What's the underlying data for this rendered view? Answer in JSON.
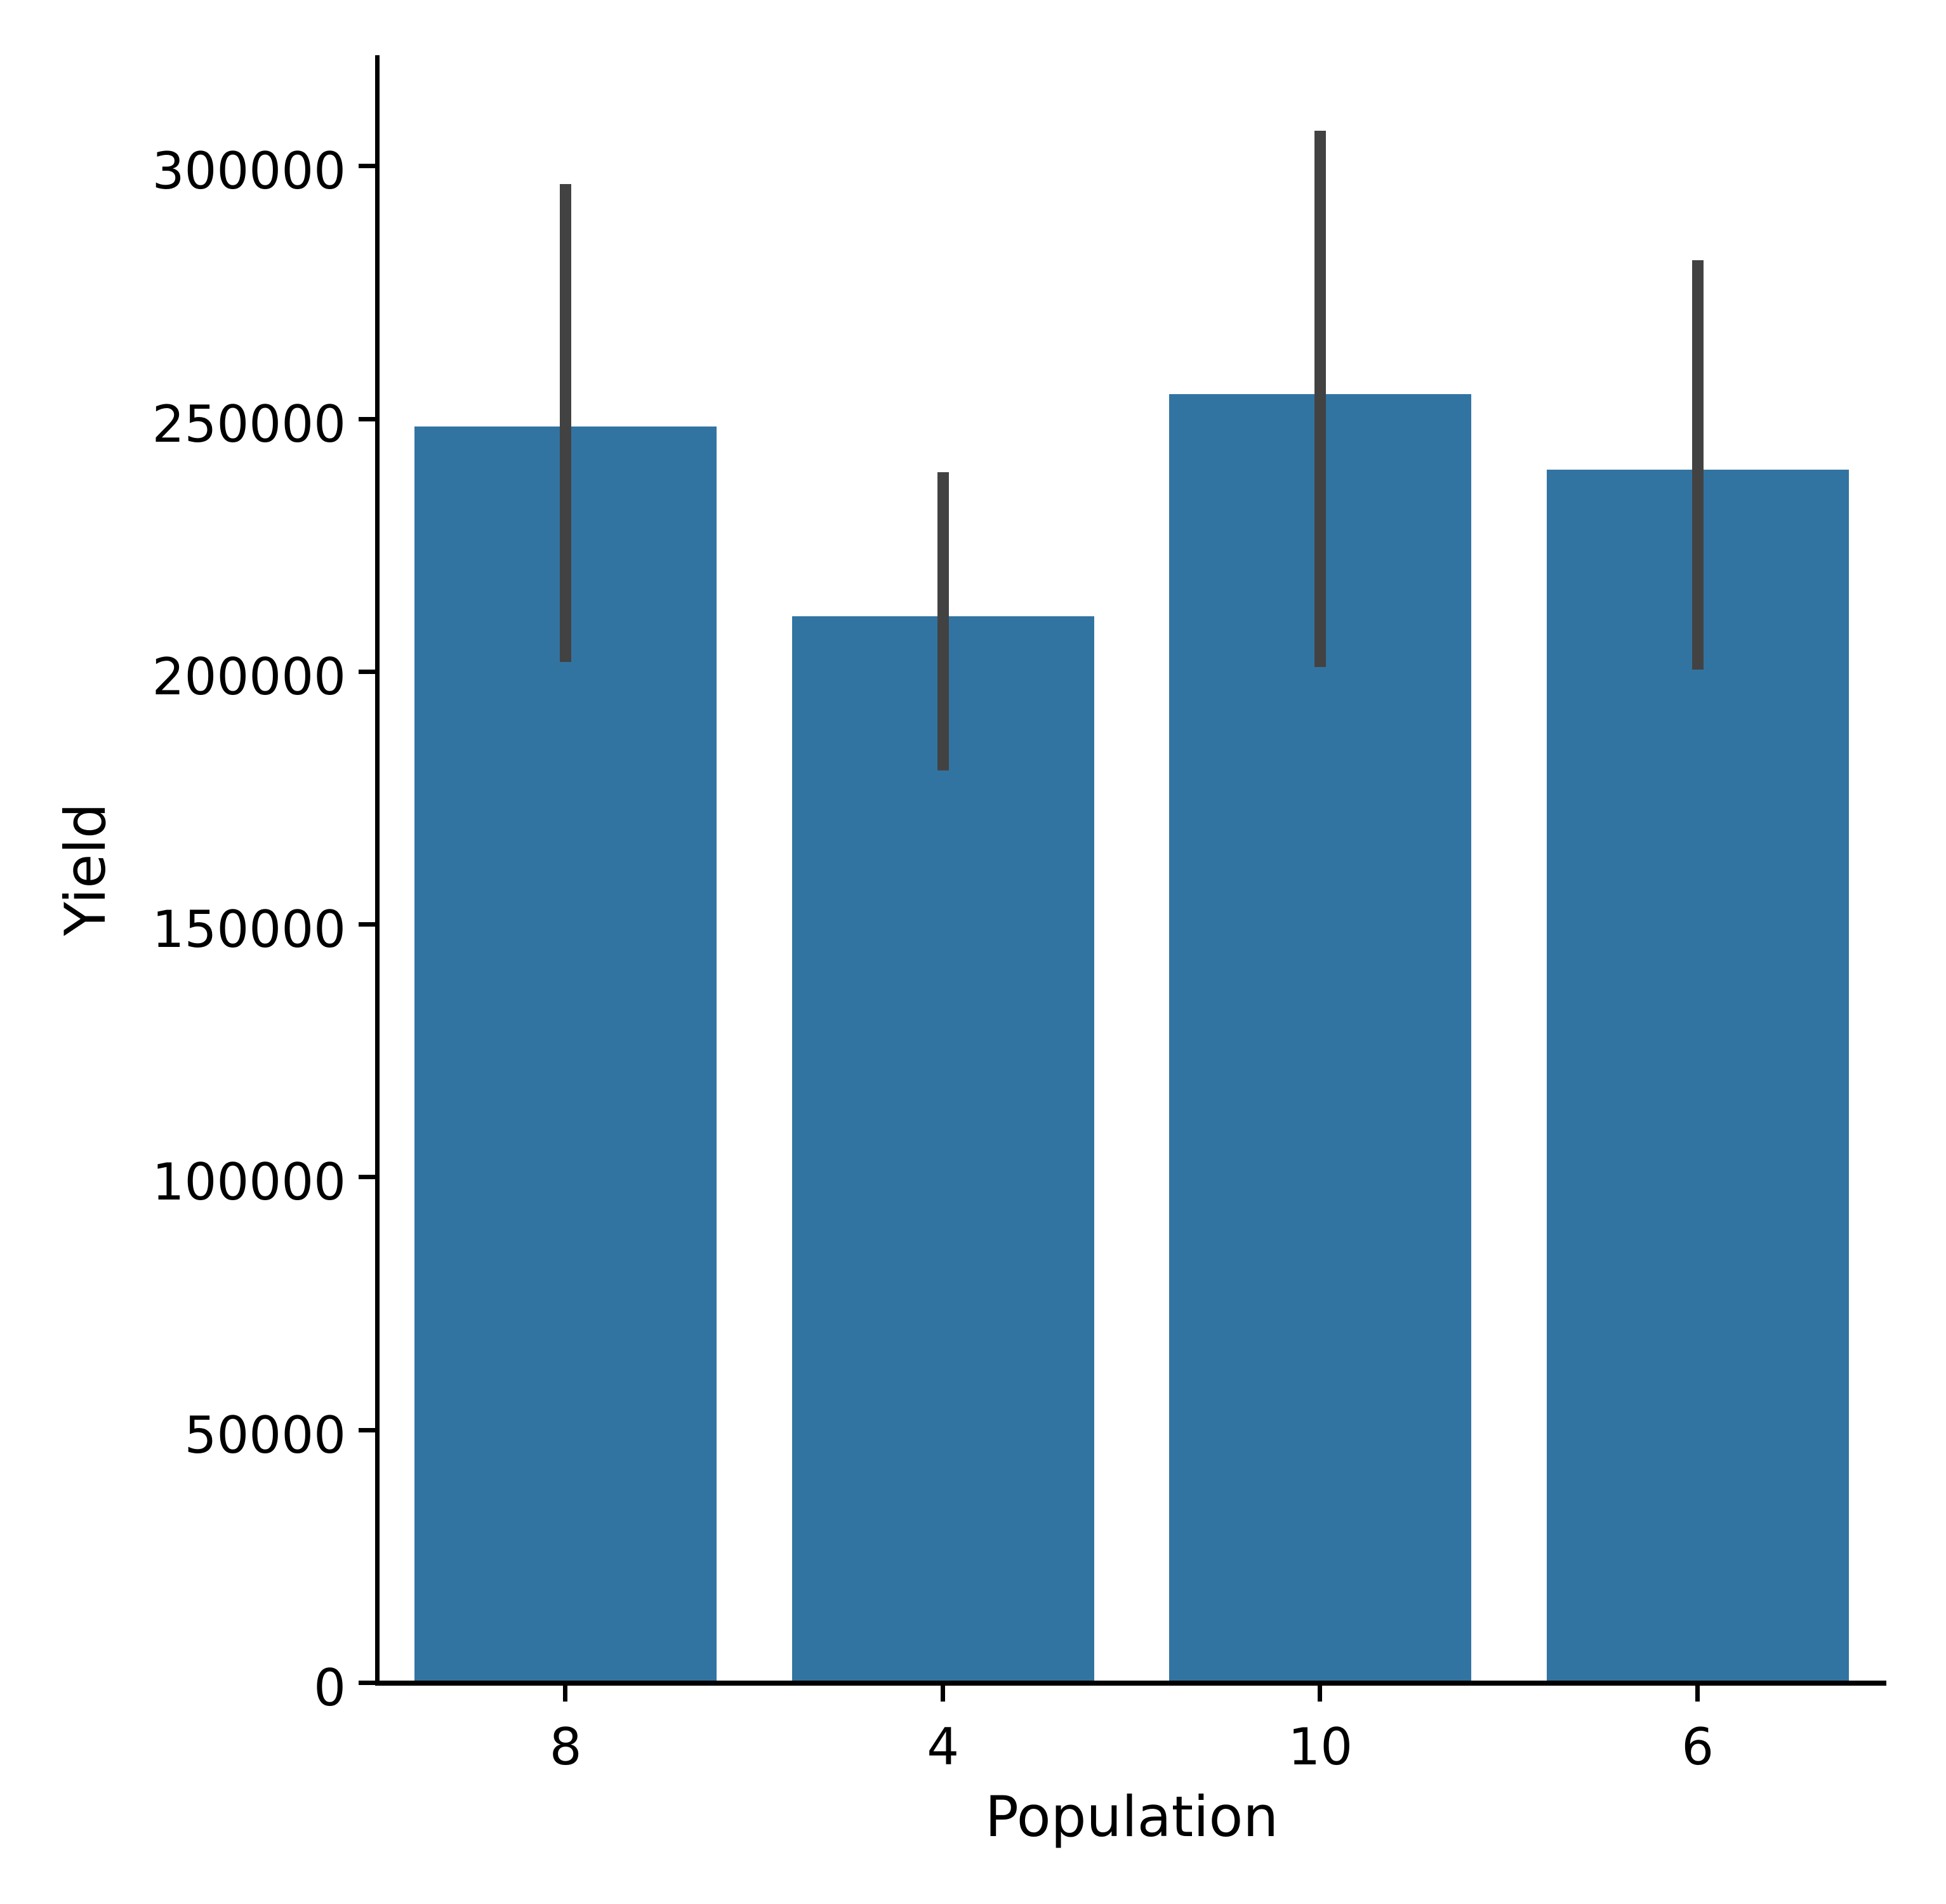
{
  "chart_data": {
    "type": "bar",
    "title": "",
    "xlabel": "Population",
    "ylabel": "Yield",
    "categories": [
      "8",
      "4",
      "10",
      "6"
    ],
    "values": [
      248500,
      211000,
      255000,
      240000
    ],
    "error_low": [
      202000,
      180500,
      201000,
      200500
    ],
    "error_high": [
      296500,
      239500,
      307000,
      281500
    ],
    "ylim": [
      0,
      322000
    ],
    "yticks": [
      0,
      50000,
      100000,
      150000,
      200000,
      250000,
      300000
    ],
    "ytick_labels": [
      "0",
      "50000",
      "100000",
      "150000",
      "200000",
      "250000",
      "300000"
    ],
    "bar_color": "#3274a1",
    "error_bar_color": "#424242",
    "axis_color": "#000000",
    "text_color": "#000000",
    "background": "#ffffff",
    "grid": false,
    "legend": null,
    "bar_width_fraction": 0.8
  }
}
